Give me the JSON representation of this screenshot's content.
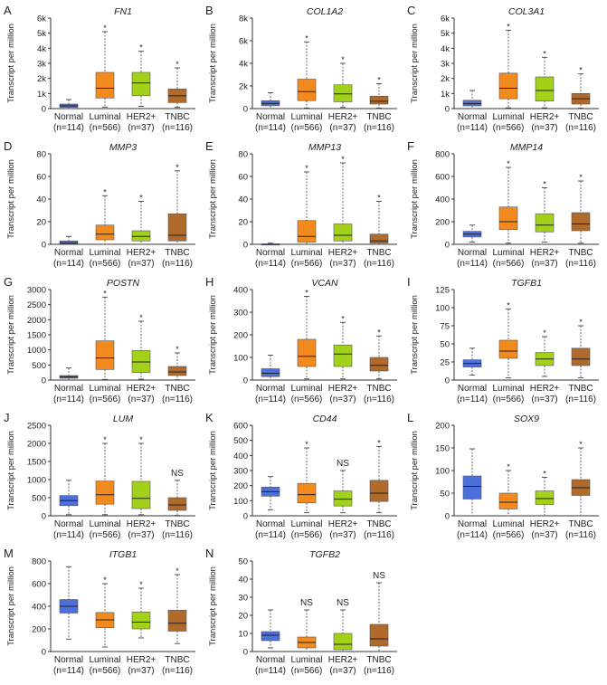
{
  "figure": {
    "ylabel": "Transcript per million",
    "group_colors": {
      "Normal": "#4d6fdb",
      "Luminal": "#f28a1d",
      "HER2+": "#a3d11a",
      "TNBC": "#b06a2c"
    },
    "box_stroke": "#555555"
  },
  "chart_data": [
    {
      "panel": "A",
      "type": "box",
      "title": "FN1",
      "ylabel": "Transcript per million",
      "ylim": [
        0,
        6000
      ],
      "yticks": [
        0,
        1000,
        2000,
        3000,
        4000,
        5000,
        6000
      ],
      "ytick_labels": [
        "0",
        "1k",
        "2k",
        "3k",
        "4k",
        "5k",
        "6k"
      ],
      "categories": [
        "Normal",
        "Luminal",
        "HER2+",
        "TNBC"
      ],
      "category_ns": [
        "(n=114)",
        "(n=566)",
        "(n=37)",
        "(n=116)"
      ],
      "boxes": [
        {
          "min": 0,
          "q1": 80,
          "median": 180,
          "q3": 300,
          "max": 600,
          "mark": ""
        },
        {
          "min": 100,
          "q1": 700,
          "median": 1350,
          "q3": 2400,
          "max": 5100,
          "mark": "*"
        },
        {
          "min": 150,
          "q1": 850,
          "median": 1700,
          "q3": 2400,
          "max": 3800,
          "mark": "*"
        },
        {
          "min": 80,
          "q1": 400,
          "median": 850,
          "q3": 1300,
          "max": 2700,
          "mark": "*"
        }
      ]
    },
    {
      "panel": "B",
      "type": "box",
      "title": "COL1A2",
      "ylabel": "Transcript per million",
      "ylim": [
        0,
        8000
      ],
      "yticks": [
        0,
        2000,
        4000,
        6000,
        8000
      ],
      "ytick_labels": [
        "0",
        "2k",
        "4k",
        "6k",
        "8k"
      ],
      "categories": [
        "Normal",
        "Luminal",
        "HER2+",
        "TNBC"
      ],
      "category_ns": [
        "(n=114)",
        "(n=566)",
        "(n=37)",
        "(n=116)"
      ],
      "boxes": [
        {
          "min": 0,
          "q1": 250,
          "median": 450,
          "q3": 700,
          "max": 1400,
          "mark": ""
        },
        {
          "min": 50,
          "q1": 700,
          "median": 1500,
          "q3": 2600,
          "max": 5900,
          "mark": "*"
        },
        {
          "min": 100,
          "q1": 600,
          "median": 1300,
          "q3": 2100,
          "max": 4000,
          "mark": "*"
        },
        {
          "min": 50,
          "q1": 400,
          "median": 650,
          "q3": 1100,
          "max": 2200,
          "mark": "*"
        }
      ]
    },
    {
      "panel": "C",
      "type": "box",
      "title": "COL3A1",
      "ylabel": "Transcript per million",
      "ylim": [
        0,
        6000
      ],
      "yticks": [
        0,
        1000,
        2000,
        3000,
        4000,
        5000,
        6000
      ],
      "ytick_labels": [
        "0",
        "1k",
        "2k",
        "3k",
        "4k",
        "5k",
        "6k"
      ],
      "categories": [
        "Normal",
        "Luminal",
        "HER2+",
        "TNBC"
      ],
      "category_ns": [
        "(n=114)",
        "(n=566)",
        "(n=37)",
        "(n=116)"
      ],
      "boxes": [
        {
          "min": 0,
          "q1": 180,
          "median": 330,
          "q3": 550,
          "max": 1200,
          "mark": ""
        },
        {
          "min": 50,
          "q1": 650,
          "median": 1350,
          "q3": 2350,
          "max": 5200,
          "mark": "*"
        },
        {
          "min": 50,
          "q1": 500,
          "median": 1200,
          "q3": 2100,
          "max": 3400,
          "mark": "*"
        },
        {
          "min": 30,
          "q1": 300,
          "median": 650,
          "q3": 1000,
          "max": 2300,
          "mark": "*"
        }
      ]
    },
    {
      "panel": "D",
      "type": "box",
      "title": "MMP3",
      "ylabel": "Transcript per million",
      "ylim": [
        0,
        80
      ],
      "yticks": [
        0,
        20,
        40,
        60,
        80
      ],
      "ytick_labels": [
        "0",
        "20",
        "40",
        "60",
        "80"
      ],
      "categories": [
        "Normal",
        "Luminal",
        "HER2+",
        "TNBC"
      ],
      "category_ns": [
        "(n=114)",
        "(n=566)",
        "(n=37)",
        "(n=116)"
      ],
      "boxes": [
        {
          "min": 0,
          "q1": 0.3,
          "median": 1,
          "q3": 3,
          "max": 7,
          "mark": ""
        },
        {
          "min": 0,
          "q1": 4,
          "median": 9,
          "q3": 17,
          "max": 43,
          "mark": "*"
        },
        {
          "min": 0,
          "q1": 3,
          "median": 7,
          "q3": 12,
          "max": 38,
          "mark": "*"
        },
        {
          "min": 0,
          "q1": 3,
          "median": 8,
          "q3": 27,
          "max": 65,
          "mark": "*"
        }
      ]
    },
    {
      "panel": "E",
      "type": "box",
      "title": "MMP13",
      "ylabel": "Transcript per million",
      "ylim": [
        0,
        80
      ],
      "yticks": [
        0,
        20,
        40,
        60,
        80
      ],
      "ytick_labels": [
        "0",
        "20",
        "40",
        "60",
        "80"
      ],
      "categories": [
        "Normal",
        "Luminal",
        "HER2+",
        "TNBC"
      ],
      "category_ns": [
        "(n=114)",
        "(n=566)",
        "(n=37)",
        "(n=116)"
      ],
      "boxes": [
        {
          "min": 0,
          "q1": 0,
          "median": 0.1,
          "q3": 0.3,
          "max": 1,
          "mark": ""
        },
        {
          "min": 0,
          "q1": 2,
          "median": 7,
          "q3": 21,
          "max": 64,
          "mark": "*"
        },
        {
          "min": 0,
          "q1": 3,
          "median": 8,
          "q3": 18,
          "max": 72,
          "mark": "*"
        },
        {
          "min": 0,
          "q1": 1,
          "median": 3,
          "q3": 9,
          "max": 38,
          "mark": "*"
        }
      ]
    },
    {
      "panel": "F",
      "type": "box",
      "title": "MMP14",
      "ylabel": "Transcript per million",
      "ylim": [
        0,
        800
      ],
      "yticks": [
        0,
        200,
        400,
        600,
        800
      ],
      "ytick_labels": [
        "0",
        "200",
        "400",
        "600",
        "800"
      ],
      "categories": [
        "Normal",
        "Luminal",
        "HER2+",
        "TNBC"
      ],
      "category_ns": [
        "(n=114)",
        "(n=566)",
        "(n=37)",
        "(n=116)"
      ],
      "boxes": [
        {
          "min": 20,
          "q1": 65,
          "median": 90,
          "q3": 115,
          "max": 170,
          "mark": ""
        },
        {
          "min": 10,
          "q1": 130,
          "median": 200,
          "q3": 330,
          "max": 680,
          "mark": "*"
        },
        {
          "min": 20,
          "q1": 110,
          "median": 170,
          "q3": 270,
          "max": 500,
          "mark": "*"
        },
        {
          "min": 10,
          "q1": 120,
          "median": 180,
          "q3": 280,
          "max": 560,
          "mark": "*"
        }
      ]
    },
    {
      "panel": "G",
      "type": "box",
      "title": "POSTN",
      "ylabel": "Transcript per million",
      "ylim": [
        0,
        3000
      ],
      "yticks": [
        0,
        500,
        1000,
        1500,
        2000,
        2500,
        3000
      ],
      "ytick_labels": [
        "0",
        "500",
        "1000",
        "1500",
        "2000",
        "2500",
        "3000"
      ],
      "categories": [
        "Normal",
        "Luminal",
        "HER2+",
        "TNBC"
      ],
      "category_ns": [
        "(n=114)",
        "(n=566)",
        "(n=37)",
        "(n=116)"
      ],
      "boxes": [
        {
          "min": 0,
          "q1": 60,
          "median": 100,
          "q3": 150,
          "max": 400,
          "mark": ""
        },
        {
          "min": 20,
          "q1": 350,
          "median": 730,
          "q3": 1300,
          "max": 2750,
          "mark": "*"
        },
        {
          "min": 30,
          "q1": 250,
          "median": 600,
          "q3": 980,
          "max": 1950,
          "mark": "*"
        },
        {
          "min": 10,
          "q1": 150,
          "median": 270,
          "q3": 450,
          "max": 900,
          "mark": "*"
        }
      ]
    },
    {
      "panel": "H",
      "type": "box",
      "title": "VCAN",
      "ylabel": "Transcript per million",
      "ylim": [
        0,
        400
      ],
      "yticks": [
        0,
        100,
        200,
        300,
        400
      ],
      "ytick_labels": [
        "0",
        "100",
        "200",
        "300",
        "400"
      ],
      "categories": [
        "Normal",
        "Luminal",
        "HER2+",
        "TNBC"
      ],
      "category_ns": [
        "(n=114)",
        "(n=566)",
        "(n=37)",
        "(n=116)"
      ],
      "boxes": [
        {
          "min": 0,
          "q1": 15,
          "median": 30,
          "q3": 50,
          "max": 110,
          "mark": ""
        },
        {
          "min": 5,
          "q1": 60,
          "median": 105,
          "q3": 180,
          "max": 370,
          "mark": "*"
        },
        {
          "min": 5,
          "q1": 60,
          "median": 115,
          "q3": 155,
          "max": 255,
          "mark": "*"
        },
        {
          "min": 5,
          "q1": 40,
          "median": 65,
          "q3": 100,
          "max": 195,
          "mark": "*"
        }
      ]
    },
    {
      "panel": "I",
      "type": "box",
      "title": "TGFB1",
      "ylabel": "Transcript per million",
      "ylim": [
        0,
        125
      ],
      "yticks": [
        0,
        25,
        50,
        75,
        100,
        125
      ],
      "ytick_labels": [
        "0",
        "25",
        "50",
        "75",
        "100",
        "125"
      ],
      "categories": [
        "Normal",
        "Luminal",
        "HER2+",
        "TNBC"
      ],
      "category_ns": [
        "(n=114)",
        "(n=566)",
        "(n=37)",
        "(n=116)"
      ],
      "boxes": [
        {
          "min": 7,
          "q1": 18,
          "median": 23,
          "q3": 28,
          "max": 44,
          "mark": ""
        },
        {
          "min": 3,
          "q1": 30,
          "median": 40,
          "q3": 55,
          "max": 98,
          "mark": "*"
        },
        {
          "min": 5,
          "q1": 20,
          "median": 29,
          "q3": 38,
          "max": 60,
          "mark": "*"
        },
        {
          "min": 3,
          "q1": 20,
          "median": 29,
          "q3": 44,
          "max": 75,
          "mark": "*"
        }
      ]
    },
    {
      "panel": "J",
      "type": "box",
      "title": "LUM",
      "ylabel": "Transcript per million",
      "ylim": [
        0,
        2500
      ],
      "yticks": [
        0,
        500,
        1000,
        1500,
        2000,
        2500
      ],
      "ytick_labels": [
        "0",
        "500",
        "1000",
        "1500",
        "2000",
        "2500"
      ],
      "categories": [
        "Normal",
        "Luminal",
        "HER2+",
        "TNBC"
      ],
      "category_ns": [
        "(n=114)",
        "(n=566)",
        "(n=37)",
        "(n=116)"
      ],
      "boxes": [
        {
          "min": 30,
          "q1": 280,
          "median": 420,
          "q3": 560,
          "max": 980,
          "mark": ""
        },
        {
          "min": 30,
          "q1": 320,
          "median": 580,
          "q3": 960,
          "max": 2000,
          "mark": "*"
        },
        {
          "min": 30,
          "q1": 200,
          "median": 480,
          "q3": 950,
          "max": 2000,
          "mark": "*"
        },
        {
          "min": 10,
          "q1": 150,
          "median": 300,
          "q3": 500,
          "max": 980,
          "mark": "NS"
        }
      ]
    },
    {
      "panel": "K",
      "type": "box",
      "title": "CD44",
      "ylabel": "Transcript per million",
      "ylim": [
        0,
        600
      ],
      "yticks": [
        0,
        100,
        200,
        300,
        400,
        500,
        600
      ],
      "ytick_labels": [
        "0",
        "100",
        "200",
        "300",
        "400",
        "500",
        "600"
      ],
      "categories": [
        "Normal",
        "Luminal",
        "HER2+",
        "TNBC"
      ],
      "category_ns": [
        "(n=114)",
        "(n=566)",
        "(n=37)",
        "(n=116)"
      ],
      "boxes": [
        {
          "min": 40,
          "q1": 130,
          "median": 160,
          "q3": 190,
          "max": 260,
          "mark": ""
        },
        {
          "min": 20,
          "q1": 85,
          "median": 140,
          "q3": 215,
          "max": 450,
          "mark": "*"
        },
        {
          "min": 20,
          "q1": 65,
          "median": 110,
          "q3": 165,
          "max": 300,
          "mark": "NS"
        },
        {
          "min": 20,
          "q1": 95,
          "median": 150,
          "q3": 235,
          "max": 460,
          "mark": "*"
        }
      ]
    },
    {
      "panel": "L",
      "type": "box",
      "title": "SOX9",
      "ylabel": "Transcript per million",
      "ylim": [
        0,
        200
      ],
      "yticks": [
        0,
        50,
        100,
        150,
        200
      ],
      "ytick_labels": [
        "0",
        "50",
        "100",
        "150",
        "200"
      ],
      "categories": [
        "Normal",
        "Luminal",
        "HER2+",
        "TNBC"
      ],
      "category_ns": [
        "(n=114)",
        "(n=566)",
        "(n=37)",
        "(n=116)"
      ],
      "boxes": [
        {
          "min": 0,
          "q1": 37,
          "median": 65,
          "q3": 88,
          "max": 148,
          "mark": ""
        },
        {
          "min": 0,
          "q1": 15,
          "median": 30,
          "q3": 50,
          "max": 100,
          "mark": "*"
        },
        {
          "min": 0,
          "q1": 25,
          "median": 38,
          "q3": 55,
          "max": 85,
          "mark": "*"
        },
        {
          "min": 0,
          "q1": 45,
          "median": 62,
          "q3": 80,
          "max": 150,
          "mark": "*"
        }
      ]
    },
    {
      "panel": "M",
      "type": "box",
      "title": "ITGB1",
      "ylabel": "Transcript per million",
      "ylim": [
        0,
        800
      ],
      "yticks": [
        0,
        200,
        400,
        600,
        800
      ],
      "ytick_labels": [
        "0",
        "200",
        "400",
        "600",
        "800"
      ],
      "categories": [
        "Normal",
        "Luminal",
        "HER2+",
        "TNBC"
      ],
      "category_ns": [
        "(n=114)",
        "(n=566)",
        "(n=37)",
        "(n=116)"
      ],
      "boxes": [
        {
          "min": 110,
          "q1": 340,
          "median": 400,
          "q3": 460,
          "max": 750,
          "mark": ""
        },
        {
          "min": 40,
          "q1": 210,
          "median": 280,
          "q3": 345,
          "max": 600,
          "mark": "*"
        },
        {
          "min": 120,
          "q1": 200,
          "median": 260,
          "q3": 350,
          "max": 560,
          "mark": "*"
        },
        {
          "min": 70,
          "q1": 180,
          "median": 250,
          "q3": 365,
          "max": 680,
          "mark": "*"
        }
      ]
    },
    {
      "panel": "N",
      "type": "box",
      "title": "TGFB2",
      "ylabel": "Transcript per million",
      "ylim": [
        0,
        50
      ],
      "yticks": [
        0,
        10,
        20,
        30,
        40,
        50
      ],
      "ytick_labels": [
        "0",
        "10",
        "20",
        "30",
        "40",
        "50"
      ],
      "categories": [
        "Normal",
        "Luminal",
        "HER2+",
        "TNBC"
      ],
      "category_ns": [
        "(n=114)",
        "(n=566)",
        "(n=37)",
        "(n=116)"
      ],
      "boxes": [
        {
          "min": 2,
          "q1": 6,
          "median": 9,
          "q3": 11,
          "max": 23,
          "mark": ""
        },
        {
          "min": 0,
          "q1": 2,
          "median": 5,
          "q3": 8,
          "max": 23,
          "mark": "NS"
        },
        {
          "min": 0,
          "q1": 1,
          "median": 4,
          "q3": 10,
          "max": 23,
          "mark": "NS"
        },
        {
          "min": 0,
          "q1": 3,
          "median": 7,
          "q3": 15,
          "max": 38,
          "mark": "NS"
        }
      ]
    }
  ]
}
